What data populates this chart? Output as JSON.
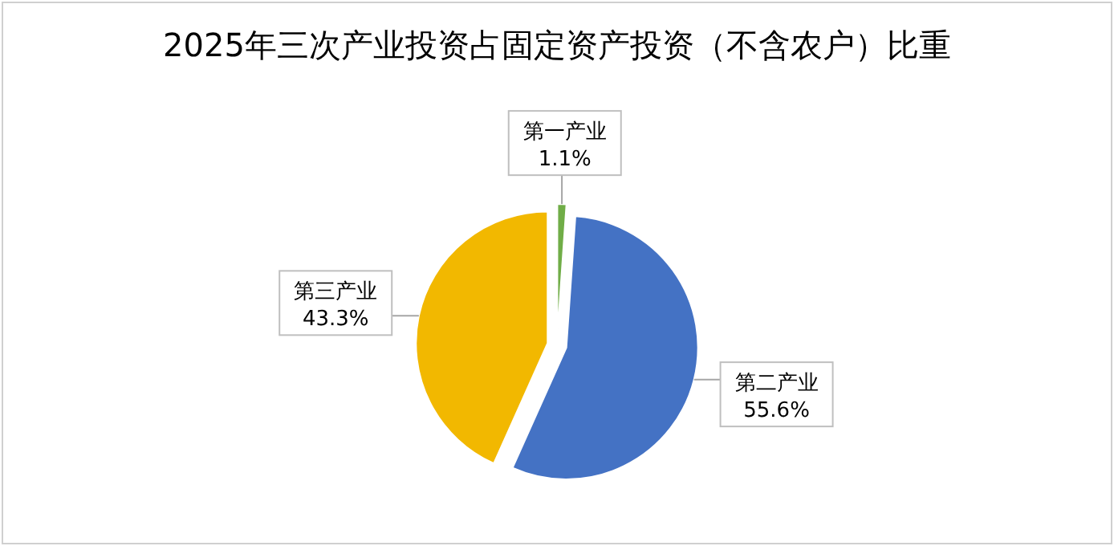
{
  "chart_data": {
    "type": "pie",
    "title": "2025年三次产业投资占固定资产投资（不含农户）比重",
    "categories": [
      "第一产业",
      "第二产业",
      "第三产业"
    ],
    "values": [
      1.1,
      55.6,
      43.3
    ],
    "value_labels": [
      "1.1%",
      "55.6%",
      "43.3%"
    ],
    "colors": [
      "#70ad47",
      "#4472c4",
      "#f2b800"
    ],
    "legend": false
  }
}
